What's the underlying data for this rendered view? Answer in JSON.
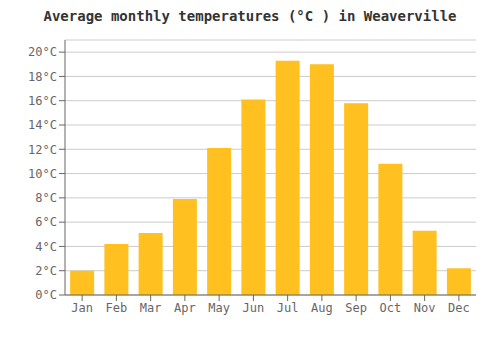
{
  "chart_data": {
    "type": "bar",
    "title": "Average monthly temperatures (°C ) in Weaverville",
    "categories": [
      "Jan",
      "Feb",
      "Mar",
      "Apr",
      "May",
      "Jun",
      "Jul",
      "Aug",
      "Sep",
      "Oct",
      "Nov",
      "Dec"
    ],
    "values": [
      2.0,
      4.2,
      5.1,
      7.9,
      12.1,
      16.1,
      19.3,
      19.0,
      15.8,
      10.8,
      5.3,
      2.2
    ],
    "color": "#FFC020",
    "ylim": [
      0,
      21
    ],
    "yticks": [
      {
        "value": 0,
        "label": "0°C"
      },
      {
        "value": 2,
        "label": "2°C"
      },
      {
        "value": 4,
        "label": "4°C"
      },
      {
        "value": 6,
        "label": "6°C"
      },
      {
        "value": 8,
        "label": "8°C"
      },
      {
        "value": 10,
        "label": "10°C"
      },
      {
        "value": 12,
        "label": "12°C"
      },
      {
        "value": 14,
        "label": "14°C"
      },
      {
        "value": 16,
        "label": "16°C"
      },
      {
        "value": 18,
        "label": "18°C"
      },
      {
        "value": 20,
        "label": "20°C"
      }
    ],
    "grid": true
  }
}
